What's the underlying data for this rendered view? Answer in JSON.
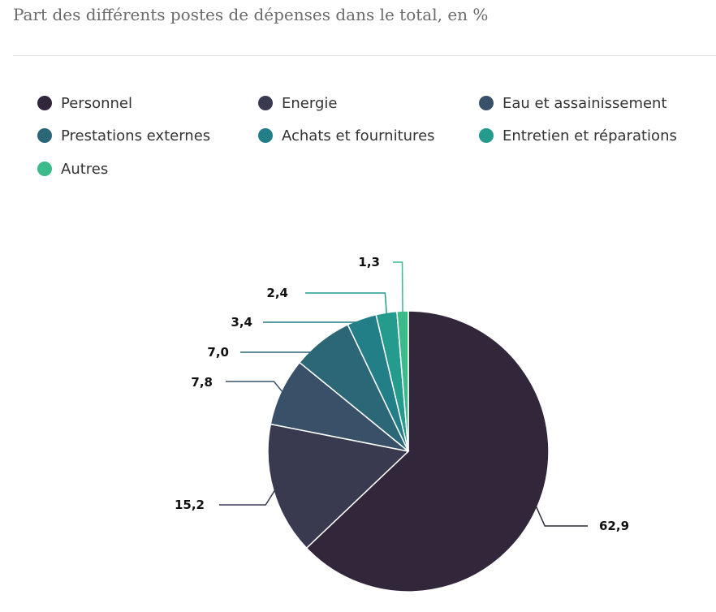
{
  "chart_data": {
    "type": "pie",
    "title": "Part des différents postes de dépenses dans le total, en %",
    "legend_position": "top",
    "slices": [
      {
        "label": "Personnel",
        "value": 62.9,
        "value_label": "62,9",
        "color": "#32263a"
      },
      {
        "label": "Energie",
        "value": 15.2,
        "value_label": "15,2",
        "color": "#393a50"
      },
      {
        "label": "Eau et assainissement",
        "value": 7.8,
        "value_label": "7,8",
        "color": "#385169"
      },
      {
        "label": "Prestations externes",
        "value": 7.0,
        "value_label": "7,0",
        "color": "#2b6777"
      },
      {
        "label": "Achats et fournitures",
        "value": 3.4,
        "value_label": "3,4",
        "color": "#227f88"
      },
      {
        "label": "Entretien et réparations",
        "value": 2.4,
        "value_label": "2,4",
        "color": "#249b8c"
      },
      {
        "label": "Autres",
        "value": 1.3,
        "value_label": "1,3",
        "color": "#3dba8a"
      }
    ]
  }
}
